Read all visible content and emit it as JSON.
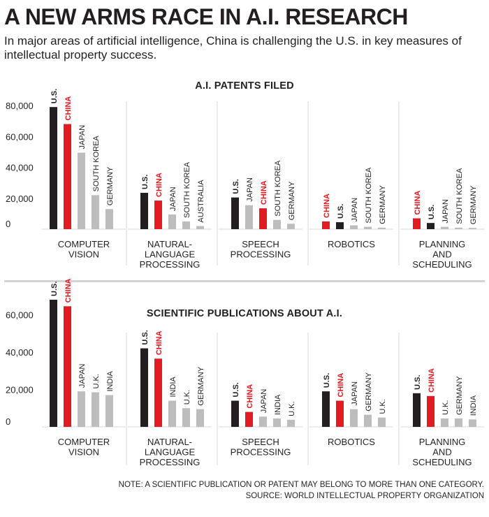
{
  "title": "A NEW ARMS RACE IN A.I. RESEARCH",
  "subtitle": "In major areas of artificial intelligence, China is challenging the U.S. in key measures of intellectual property success.",
  "note": "NOTE: A SCIENTIFIC PUBLICATION OR PATENT MAY BELONG TO MORE THAN ONE CATEGORY.",
  "source": "SOURCE: WORLD INTELLECTUAL PROPERTY ORGANIZATION",
  "colors": {
    "us": "#231f20",
    "china": "#e21b23",
    "other": "#bdbdbd",
    "grid": "#d9d9d9",
    "text": "#231f20"
  },
  "chart_data": [
    {
      "type": "bar",
      "title": "A.I. PATENTS FILED",
      "ylim": [
        0,
        80000
      ],
      "yticks": [
        "0",
        "20,000",
        "40,000",
        "60,000",
        "80,000"
      ],
      "panels": [
        {
          "category_lines": [
            "COMPUTER",
            "VISION"
          ],
          "bars": [
            {
              "label": "U.S.",
              "value": 79000,
              "group": "us"
            },
            {
              "label": "CHINA",
              "value": 68000,
              "group": "china"
            },
            {
              "label": "JAPAN",
              "value": 49500,
              "group": "other"
            },
            {
              "label": "SOUTH KOREA",
              "value": 22000,
              "group": "other"
            },
            {
              "label": "GERMANY",
              "value": 13000,
              "group": "other"
            }
          ]
        },
        {
          "category_lines": [
            "NATURAL-",
            "LANGUAGE",
            "PROCESSING"
          ],
          "bars": [
            {
              "label": "U.S.",
              "value": 23500,
              "group": "us"
            },
            {
              "label": "CHINA",
              "value": 18500,
              "group": "china"
            },
            {
              "label": "JAPAN",
              "value": 9500,
              "group": "other"
            },
            {
              "label": "SOUTH KOREA",
              "value": 5000,
              "group": "other"
            },
            {
              "label": "AUSTRALIA",
              "value": 2000,
              "group": "other"
            }
          ]
        },
        {
          "category_lines": [
            "SPEECH",
            "PROCESSING"
          ],
          "bars": [
            {
              "label": "U.S.",
              "value": 20500,
              "group": "us"
            },
            {
              "label": "JAPAN",
              "value": 15500,
              "group": "other"
            },
            {
              "label": "CHINA",
              "value": 13500,
              "group": "china"
            },
            {
              "label": "SOUTH KOREA",
              "value": 6000,
              "group": "other"
            },
            {
              "label": "GERMANY",
              "value": 3500,
              "group": "other"
            }
          ]
        },
        {
          "category_lines": [
            "ROBOTICS"
          ],
          "bars": [
            {
              "label": "CHINA",
              "value": 5000,
              "group": "china"
            },
            {
              "label": "U.S.",
              "value": 4500,
              "group": "us"
            },
            {
              "label": "JAPAN",
              "value": 2500,
              "group": "other"
            },
            {
              "label": "SOUTH KOREA",
              "value": 1500,
              "group": "other"
            },
            {
              "label": "GERMANY",
              "value": 1000,
              "group": "other"
            }
          ]
        },
        {
          "category_lines": [
            "PLANNING",
            "AND",
            "SCHEDULING"
          ],
          "bars": [
            {
              "label": "CHINA",
              "value": 7000,
              "group": "china"
            },
            {
              "label": "U.S.",
              "value": 4000,
              "group": "us"
            },
            {
              "label": "JAPAN",
              "value": 1500,
              "group": "other"
            },
            {
              "label": "SOUTH KOREA",
              "value": 1000,
              "group": "other"
            },
            {
              "label": "GERMANY",
              "value": 800,
              "group": "other"
            }
          ]
        }
      ]
    },
    {
      "type": "bar",
      "title": "SCIENTIFIC PUBLICATIONS ABOUT A.I.",
      "ylim": [
        0,
        70000
      ],
      "yticks": [
        "0",
        "20,000",
        "40,000",
        "60,000"
      ],
      "panels": [
        {
          "category_lines": [
            "COMPUTER",
            "VISION"
          ],
          "bars": [
            {
              "label": "U.S.",
              "value": 68000,
              "group": "us"
            },
            {
              "label": "CHINA",
              "value": 64500,
              "group": "china"
            },
            {
              "label": "JAPAN",
              "value": 19000,
              "group": "other"
            },
            {
              "label": "U.K.",
              "value": 18500,
              "group": "other"
            },
            {
              "label": "INDIA",
              "value": 17000,
              "group": "other"
            }
          ]
        },
        {
          "category_lines": [
            "NATURAL-",
            "LANGUAGE",
            "PROCESSING"
          ],
          "bars": [
            {
              "label": "U.S.",
              "value": 42000,
              "group": "us"
            },
            {
              "label": "CHINA",
              "value": 36500,
              "group": "china"
            },
            {
              "label": "INDIA",
              "value": 14000,
              "group": "other"
            },
            {
              "label": "U.K.",
              "value": 10000,
              "group": "other"
            },
            {
              "label": "GERMANY",
              "value": 9500,
              "group": "other"
            }
          ]
        },
        {
          "category_lines": [
            "SPEECH",
            "PROCESSING"
          ],
          "bars": [
            {
              "label": "U.S.",
              "value": 14000,
              "group": "us"
            },
            {
              "label": "CHINA",
              "value": 8000,
              "group": "china"
            },
            {
              "label": "JAPAN",
              "value": 5500,
              "group": "other"
            },
            {
              "label": "INDIA",
              "value": 4500,
              "group": "other"
            },
            {
              "label": "U.K.",
              "value": 3800,
              "group": "other"
            }
          ]
        },
        {
          "category_lines": [
            "ROBOTICS"
          ],
          "bars": [
            {
              "label": "U.S.",
              "value": 19000,
              "group": "us"
            },
            {
              "label": "CHINA",
              "value": 14000,
              "group": "china"
            },
            {
              "label": "JAPAN",
              "value": 9500,
              "group": "other"
            },
            {
              "label": "GERMANY",
              "value": 6500,
              "group": "other"
            },
            {
              "label": "U.K.",
              "value": 5000,
              "group": "other"
            }
          ]
        },
        {
          "category_lines": [
            "PLANNING",
            "AND",
            "SCHEDULING"
          ],
          "bars": [
            {
              "label": "U.S.",
              "value": 18000,
              "group": "us"
            },
            {
              "label": "CHINA",
              "value": 16500,
              "group": "china"
            },
            {
              "label": "U.K.",
              "value": 4500,
              "group": "other"
            },
            {
              "label": "GERMANY",
              "value": 4500,
              "group": "other"
            },
            {
              "label": "INDIA",
              "value": 4000,
              "group": "other"
            }
          ]
        }
      ]
    }
  ]
}
